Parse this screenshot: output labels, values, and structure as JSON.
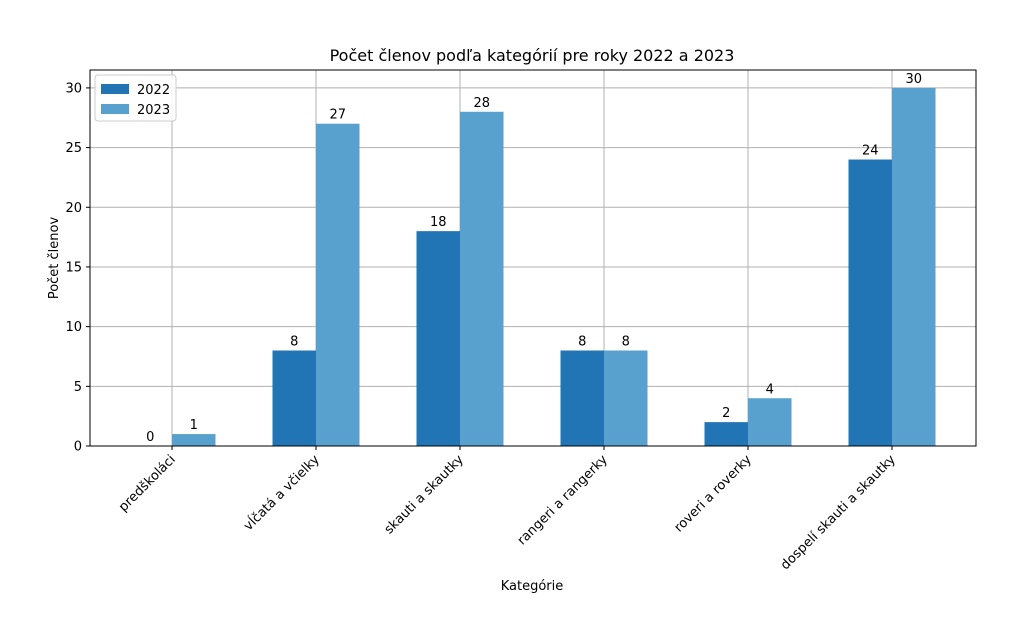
{
  "chart_data": {
    "type": "bar",
    "title": "Počet členov podľa kategórií pre roky 2022 a 2023",
    "xlabel": "Kategórie",
    "ylabel": "Počet členov",
    "categories": [
      "predškoláci",
      "vĺčatá a včielky",
      "skauti a skautky",
      "rangeri a rangerky",
      "roveri a roverky",
      "dospelí skauti a skautky"
    ],
    "series": [
      {
        "name": "2022",
        "values": [
          0,
          8,
          18,
          8,
          2,
          24
        ],
        "color": "#2275b4"
      },
      {
        "name": "2023",
        "values": [
          1,
          27,
          28,
          8,
          4,
          30
        ],
        "color": "#58a1cf"
      }
    ],
    "ylim": [
      0,
      31.5
    ],
    "yticks": [
      0,
      5,
      10,
      15,
      20,
      25,
      30
    ],
    "grid": true,
    "legend_position": "top-left"
  }
}
